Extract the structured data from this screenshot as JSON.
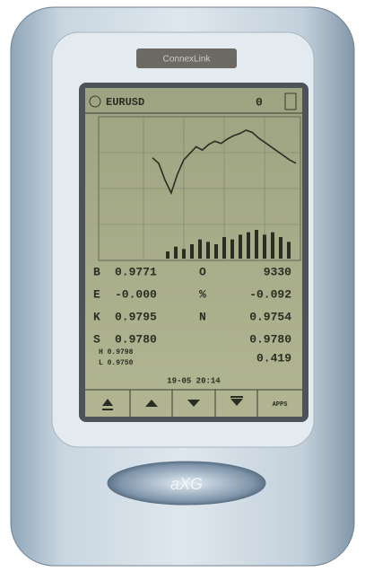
{
  "device": {
    "brand": "ConnexLink",
    "logo": "aXG"
  },
  "screen": {
    "symbol": "EURUSD",
    "indicator": "0",
    "chart": {
      "prices": [
        60,
        55,
        40,
        28,
        45,
        58,
        64,
        70,
        67,
        72,
        75,
        73,
        77,
        80,
        82,
        85,
        83,
        78,
        74,
        70,
        66,
        62,
        58,
        55
      ],
      "volumes": [
        3,
        5,
        4,
        6,
        8,
        7,
        6,
        9,
        8,
        10,
        11,
        12,
        10,
        11,
        9,
        7
      ]
    },
    "rows": [
      [
        "B",
        "0.9771",
        "O",
        "9330"
      ],
      [
        "E",
        "-0.000",
        "%",
        "-0.092"
      ],
      [
        "K",
        "0.9795",
        "N",
        "0.9754"
      ],
      [
        "S",
        "0.9780",
        "",
        "0.9780"
      ]
    ],
    "high": "H 0.9798",
    "low": "L 0.9750",
    "extra": "0.419",
    "timestamp": "19-05 20:14",
    "button": "APPS"
  }
}
